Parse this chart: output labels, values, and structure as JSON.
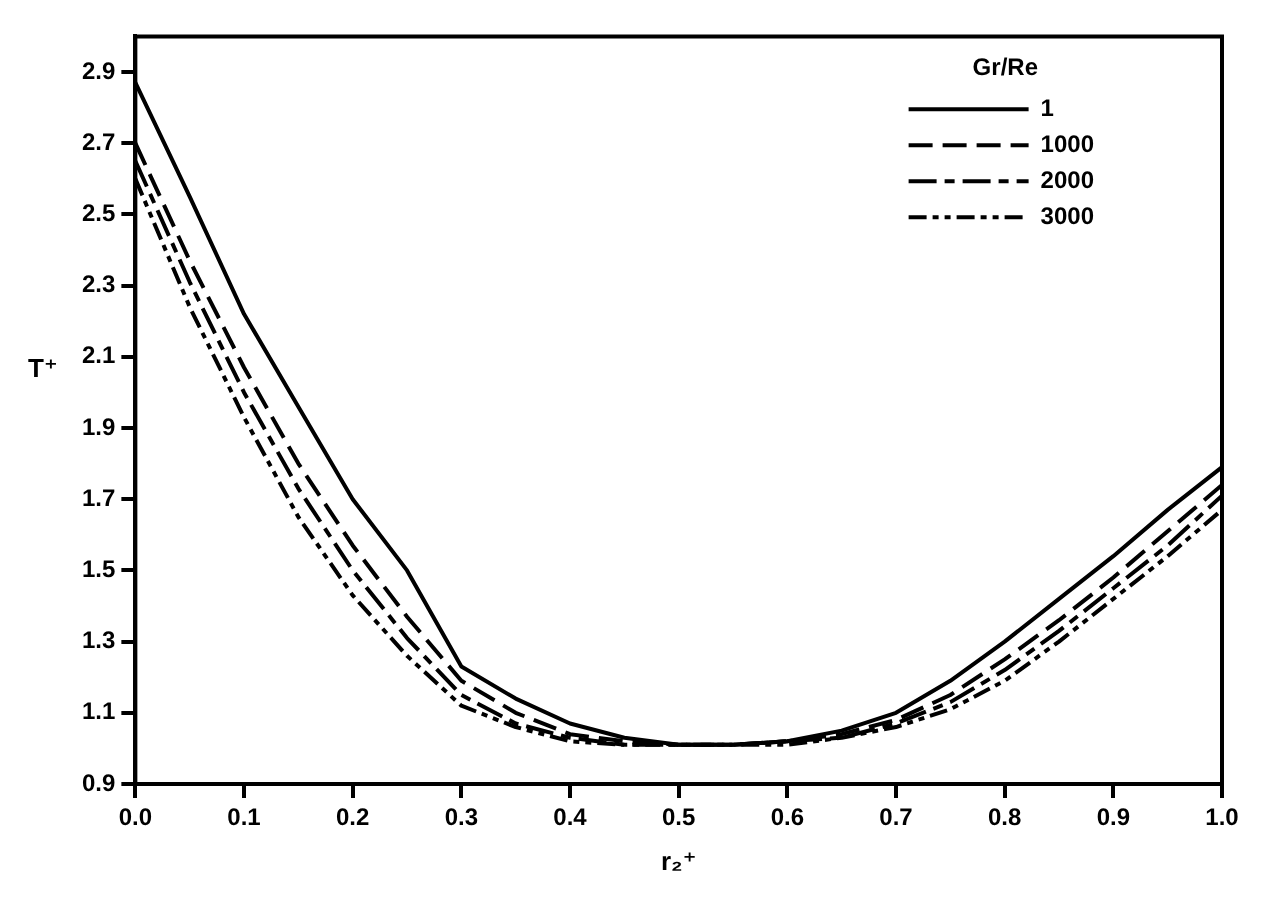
{
  "chart_data": {
    "type": "line",
    "xlabel": "r₂⁺",
    "ylabel": "T⁺",
    "legend_title": "Gr/Re",
    "legend": "top right",
    "grid": false,
    "marker": "none",
    "x": [
      0,
      0.05,
      0.1,
      0.15,
      0.2,
      0.25,
      0.3,
      0.35,
      0.4,
      0.45,
      0.5,
      0.55,
      0.6,
      0.65,
      0.7,
      0.75,
      0.8,
      0.85,
      0.9,
      0.95,
      1.0
    ],
    "xlim": [
      0,
      1.0
    ],
    "xticks": [
      {
        "value": 0,
        "label": "0.0"
      },
      0.1,
      0.2,
      0.3,
      0.4,
      0.5,
      0.6,
      0.7,
      0.8,
      0.9,
      {
        "value": 1,
        "label": "1.0"
      }
    ],
    "ylim": [
      0.9,
      3.0
    ],
    "yticks": [
      0.9,
      1.1,
      1.3,
      1.5,
      1.7,
      1.9,
      2.1,
      2.3,
      2.5,
      2.7,
      2.9
    ],
    "series": [
      {
        "name": "1",
        "color": "#000000",
        "line_style": "solid",
        "values": [
          2.87,
          2.55,
          2.22,
          1.96,
          1.7,
          1.5,
          1.23,
          1.14,
          1.07,
          1.03,
          1.01,
          1.01,
          1.02,
          1.05,
          1.1,
          1.19,
          1.3,
          1.42,
          1.54,
          1.67,
          1.79
        ]
      },
      {
        "name": "1000",
        "color": "#000000",
        "line_style": "dashed",
        "values": [
          2.7,
          2.37,
          2.07,
          1.8,
          1.57,
          1.37,
          1.19,
          1.1,
          1.04,
          1.02,
          1.01,
          1.01,
          1.02,
          1.04,
          1.08,
          1.15,
          1.25,
          1.36,
          1.48,
          1.61,
          1.74
        ]
      },
      {
        "name": "2000",
        "color": "#000000",
        "line_style": "dashed",
        "values": [
          2.65,
          2.31,
          2.0,
          1.73,
          1.5,
          1.31,
          1.15,
          1.07,
          1.03,
          1.01,
          1.01,
          1.01,
          1.02,
          1.03,
          1.07,
          1.13,
          1.22,
          1.33,
          1.45,
          1.57,
          1.71
        ]
      },
      {
        "name": "3000",
        "color": "#000000",
        "line_style": "dashed",
        "values": [
          2.6,
          2.24,
          1.93,
          1.65,
          1.43,
          1.26,
          1.12,
          1.06,
          1.02,
          1.01,
          1.01,
          1.01,
          1.01,
          1.03,
          1.06,
          1.11,
          1.19,
          1.3,
          1.42,
          1.54,
          1.67
        ]
      }
    ]
  }
}
